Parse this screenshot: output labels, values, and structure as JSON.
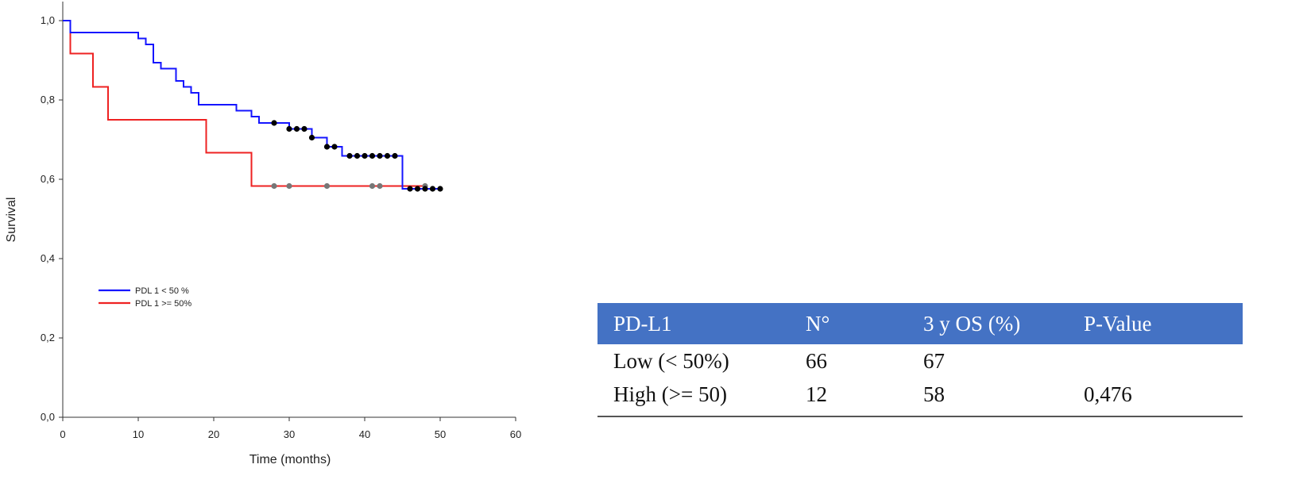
{
  "chart_data": {
    "type": "line",
    "ylabel": "Survival",
    "xlabel": "Time (months)",
    "xlim": [
      0,
      60
    ],
    "ylim": [
      0,
      1.0
    ],
    "x_ticks": [
      0,
      10,
      20,
      30,
      40,
      50,
      60
    ],
    "y_ticks": [
      0.0,
      0.2,
      0.4,
      0.6,
      0.8,
      1.0
    ],
    "x_tick_labels": [
      "0",
      "10",
      "20",
      "30",
      "40",
      "50",
      "60"
    ],
    "y_tick_labels": [
      "0,0",
      "0,2",
      "0,4",
      "0,6",
      "0,8",
      "1,0"
    ],
    "grid": false,
    "legend_position": "middle-left",
    "series": [
      {
        "name": "PDL 1 < 50 %",
        "color": "#1515ff",
        "censor_color": "#000000",
        "steps": [
          [
            0,
            1.0
          ],
          [
            1,
            0.97
          ],
          [
            10,
            0.955
          ],
          [
            11,
            0.94
          ],
          [
            12,
            0.894
          ],
          [
            13,
            0.879
          ],
          [
            15,
            0.848
          ],
          [
            16,
            0.833
          ],
          [
            17,
            0.818
          ],
          [
            18,
            0.788
          ],
          [
            23,
            0.773
          ],
          [
            25,
            0.758
          ],
          [
            26,
            0.742
          ],
          [
            30,
            0.727
          ],
          [
            33,
            0.705
          ],
          [
            35,
            0.682
          ],
          [
            37,
            0.659
          ],
          [
            45,
            0.576
          ],
          [
            50,
            0.576
          ]
        ],
        "censored": [
          [
            28,
            0.742
          ],
          [
            30,
            0.727
          ],
          [
            31,
            0.727
          ],
          [
            32,
            0.727
          ],
          [
            33,
            0.705
          ],
          [
            35,
            0.682
          ],
          [
            36,
            0.682
          ],
          [
            38,
            0.659
          ],
          [
            39,
            0.659
          ],
          [
            40,
            0.659
          ],
          [
            41,
            0.659
          ],
          [
            42,
            0.659
          ],
          [
            43,
            0.659
          ],
          [
            44,
            0.659
          ],
          [
            46,
            0.576
          ],
          [
            47,
            0.576
          ],
          [
            48,
            0.576
          ],
          [
            49,
            0.576
          ],
          [
            50,
            0.576
          ]
        ]
      },
      {
        "name": "PDL 1 >= 50%",
        "color": "#ee2222",
        "censor_color": "#777777",
        "steps": [
          [
            0,
            1.0
          ],
          [
            1,
            0.917
          ],
          [
            4,
            0.833
          ],
          [
            6,
            0.75
          ],
          [
            19,
            0.667
          ],
          [
            25,
            0.583
          ],
          [
            48,
            0.583
          ]
        ],
        "censored": [
          [
            28,
            0.583
          ],
          [
            30,
            0.583
          ],
          [
            35,
            0.583
          ],
          [
            41,
            0.583
          ],
          [
            42,
            0.583
          ],
          [
            48,
            0.583
          ]
        ]
      }
    ]
  },
  "table": {
    "header_color": "#4472c4",
    "headers": [
      "PD-L1",
      "N°",
      "3 y OS (%)",
      "P-Value"
    ],
    "rows": [
      [
        "Low (< 50%)",
        "66",
        "67",
        ""
      ],
      [
        "High (>= 50)",
        "12",
        "58",
        "0,476"
      ]
    ]
  }
}
